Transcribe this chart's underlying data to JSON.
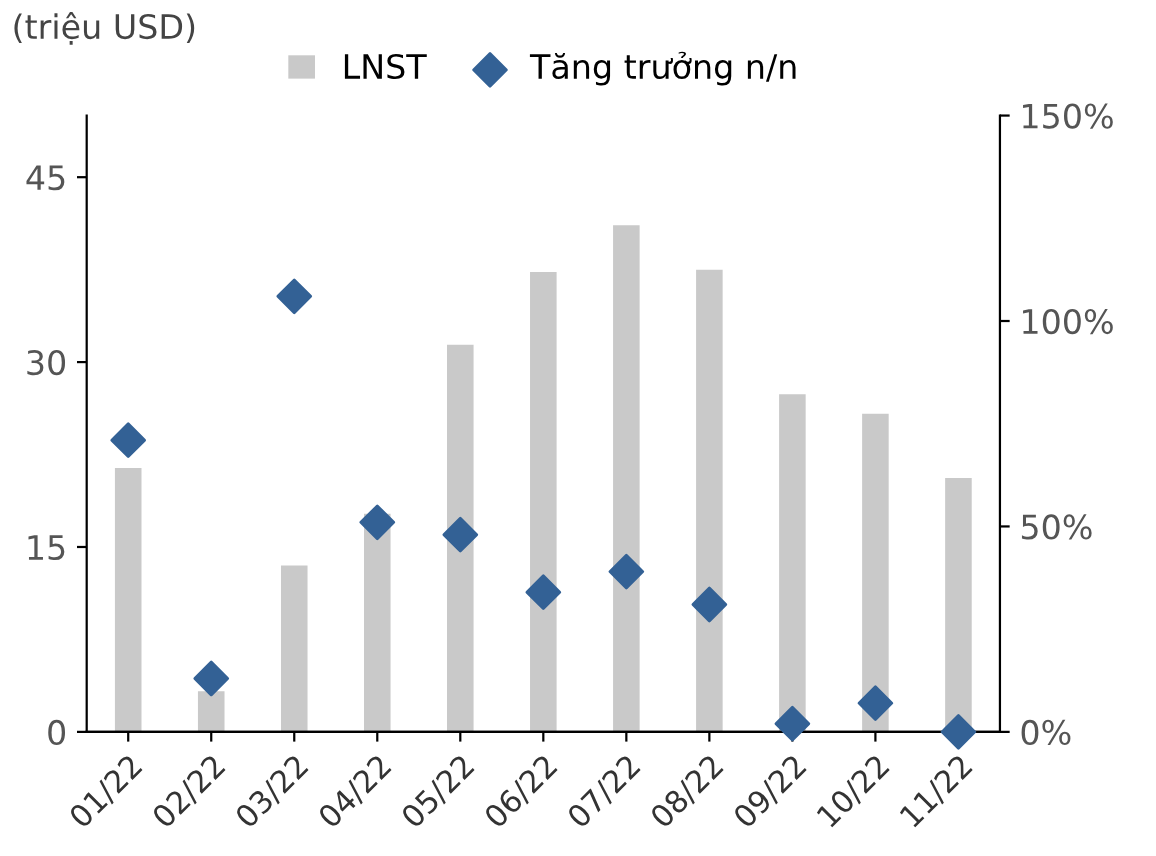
{
  "chart_data": {
    "type": "bar",
    "annotations": [
      "(triệu USD)"
    ],
    "categories": [
      "01/22",
      "02/22",
      "03/22",
      "04/22",
      "05/22",
      "06/22",
      "07/22",
      "08/22",
      "09/22",
      "10/22",
      "11/22"
    ],
    "series": [
      {
        "name": "LNST",
        "color": "#c9c9c9",
        "values": [
          21.4,
          3.3,
          13.5,
          17.7,
          31.4,
          37.3,
          41.1,
          37.5,
          27.4,
          25.8,
          20.6
        ]
      },
      {
        "name": "Tăng trưởng n/n",
        "type": "scatter",
        "axis": "y2",
        "marker": "diamond",
        "color": "#336195",
        "values": [
          71,
          13,
          106,
          51,
          48,
          34,
          39,
          31,
          2,
          7,
          0
        ]
      }
    ],
    "ylim": [
      0,
      50
    ],
    "yticks": [
      0,
      15,
      30,
      45
    ],
    "y2lim": [
      0,
      150
    ],
    "y2ticks": [
      {
        "value": 0,
        "label": "0%"
      },
      {
        "value": 50,
        "label": "50%"
      },
      {
        "value": 100,
        "label": "100%"
      },
      {
        "value": 150,
        "label": "150%"
      }
    ],
    "grid": false,
    "legend": "top"
  }
}
